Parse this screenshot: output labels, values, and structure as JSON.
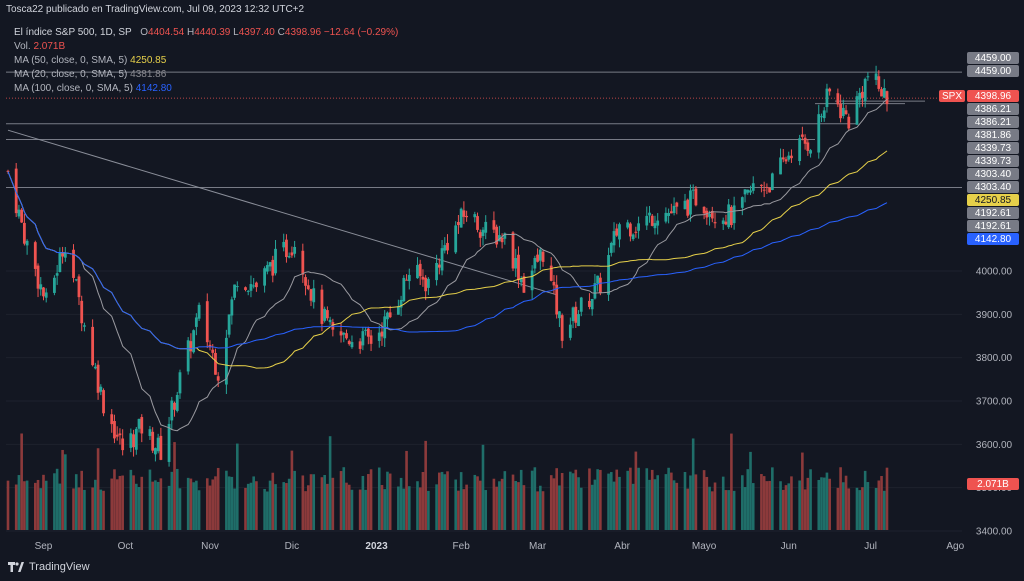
{
  "header": {
    "publisher": "Tosca22 publicado en TradingView.com, Jul 09, 2023 12:32 UTC+2"
  },
  "legend": {
    "symbol": "El índice S&P 500, 1D, SP",
    "o_label": "O",
    "o": "4404.54",
    "h_label": "H",
    "h": "4440.39",
    "l_label": "L",
    "l": "4397.40",
    "c_label": "C",
    "c": "4398.96",
    "change": "−12.64 (−0.29%)",
    "vol_label": "Vol.",
    "vol": "2.071B",
    "ma50_label": "MA (50, close, 0, SMA, 5)",
    "ma50": "4250.85",
    "ma20_label": "MA (20, close, 0, SMA, 5)",
    "ma20": "4381.86",
    "ma100_label": "MA (100, close, 0, SMA, 5)",
    "ma100": "4142.80"
  },
  "footer": {
    "brand": "TradingView"
  },
  "colors": {
    "bg": "#131722",
    "up": "#26a69a",
    "down": "#ef5350",
    "up_vol": "#1f6e69",
    "down_vol": "#8c3a3b",
    "ma20": "#9a9aa0",
    "ma50": "#e6d04a",
    "ma100": "#2962ff",
    "grid": "#1e222d",
    "axis_text": "#b2b5be"
  },
  "chart_data": {
    "type": "candlestick",
    "symbol": "SPX",
    "interval": "1D",
    "y_ticks": [
      3400,
      3500,
      3600,
      3700,
      3800,
      3900,
      4000
    ],
    "ylim": [
      3350,
      4480
    ],
    "x_labels": [
      "Sep",
      "Oct",
      "Nov",
      "Dic",
      "2023",
      "Feb",
      "Mar",
      "Abr",
      "Mayo",
      "Jun",
      "Jul",
      "Ago"
    ],
    "price_labels": [
      {
        "text": "4459.00",
        "value": 4459.0,
        "kind": "gray"
      },
      {
        "text": "4459.00",
        "value": 4459.0,
        "kind": "gray"
      },
      {
        "text": "SPX",
        "value": 4398.96,
        "kind": "symbol"
      },
      {
        "text": "4398.96",
        "value": 4398.96,
        "kind": "last"
      },
      {
        "text": "4386.21",
        "value": 4386.21,
        "kind": "gray"
      },
      {
        "text": "4386.21",
        "value": 4386.21,
        "kind": "gray"
      },
      {
        "text": "4381.86",
        "value": 4381.86,
        "kind": "gray"
      },
      {
        "text": "4339.73",
        "value": 4339.73,
        "kind": "gray"
      },
      {
        "text": "4339.73",
        "value": 4339.73,
        "kind": "gray"
      },
      {
        "text": "4303.40",
        "value": 4303.4,
        "kind": "gray"
      },
      {
        "text": "4303.40",
        "value": 4303.4,
        "kind": "gray"
      },
      {
        "text": "4250.85",
        "value": 4250.85,
        "kind": "ma50"
      },
      {
        "text": "4192.61",
        "value": 4192.61,
        "kind": "gray"
      },
      {
        "text": "4192.61",
        "value": 4192.61,
        "kind": "gray"
      },
      {
        "text": "4142.80",
        "value": 4142.8,
        "kind": "ma100"
      },
      {
        "text": "2.071B",
        "value": null,
        "kind": "vol"
      }
    ],
    "horizontal_lines": [
      4459.0,
      4339.73,
      4303.4,
      4192.61,
      4386.21
    ],
    "trendline": {
      "from": [
        "2022-08-19",
        4325
      ],
      "to": [
        "2023-03-08",
        3945
      ]
    },
    "closes_weekly": [
      {
        "date": "2022-08-19",
        "close": 4230
      },
      {
        "date": "2022-08-26",
        "close": 4060
      },
      {
        "date": "2022-09-02",
        "close": 3925
      },
      {
        "date": "2022-09-09",
        "close": 4070
      },
      {
        "date": "2022-09-16",
        "close": 3875
      },
      {
        "date": "2022-09-23",
        "close": 3695
      },
      {
        "date": "2022-09-30",
        "close": 3590
      },
      {
        "date": "2022-10-07",
        "close": 3640
      },
      {
        "date": "2022-10-14",
        "close": 3585
      },
      {
        "date": "2022-10-21",
        "close": 3750
      },
      {
        "date": "2022-10-28",
        "close": 3900
      },
      {
        "date": "2022-11-04",
        "close": 3770
      },
      {
        "date": "2022-11-11",
        "close": 3990
      },
      {
        "date": "2022-11-18",
        "close": 3965
      },
      {
        "date": "2022-11-25",
        "close": 4025
      },
      {
        "date": "2022-12-02",
        "close": 4070
      },
      {
        "date": "2022-12-09",
        "close": 3935
      },
      {
        "date": "2022-12-16",
        "close": 3850
      },
      {
        "date": "2022-12-23",
        "close": 3845
      },
      {
        "date": "2022-12-30",
        "close": 3840
      },
      {
        "date": "2023-01-06",
        "close": 3895
      },
      {
        "date": "2023-01-13",
        "close": 3999
      },
      {
        "date": "2023-01-20",
        "close": 3972
      },
      {
        "date": "2023-01-27",
        "close": 4070
      },
      {
        "date": "2023-02-03",
        "close": 4136
      },
      {
        "date": "2023-02-10",
        "close": 4090
      },
      {
        "date": "2023-02-17",
        "close": 4079
      },
      {
        "date": "2023-02-24",
        "close": 3970
      },
      {
        "date": "2023-03-03",
        "close": 4045
      },
      {
        "date": "2023-03-10",
        "close": 3861
      },
      {
        "date": "2023-03-17",
        "close": 3916
      },
      {
        "date": "2023-03-24",
        "close": 3970
      },
      {
        "date": "2023-03-31",
        "close": 4109
      },
      {
        "date": "2023-04-07",
        "close": 4105
      },
      {
        "date": "2023-04-14",
        "close": 4137
      },
      {
        "date": "2023-04-21",
        "close": 4133
      },
      {
        "date": "2023-04-28",
        "close": 4169
      },
      {
        "date": "2023-05-05",
        "close": 4136
      },
      {
        "date": "2023-05-12",
        "close": 4124
      },
      {
        "date": "2023-05-19",
        "close": 4191
      },
      {
        "date": "2023-05-26",
        "close": 4205
      },
      {
        "date": "2023-06-02",
        "close": 4282
      },
      {
        "date": "2023-06-09",
        "close": 4299
      },
      {
        "date": "2023-06-16",
        "close": 4409
      },
      {
        "date": "2023-06-23",
        "close": 4348
      },
      {
        "date": "2023-06-30",
        "close": 4450
      },
      {
        "date": "2023-07-07",
        "close": 4399
      }
    ]
  }
}
